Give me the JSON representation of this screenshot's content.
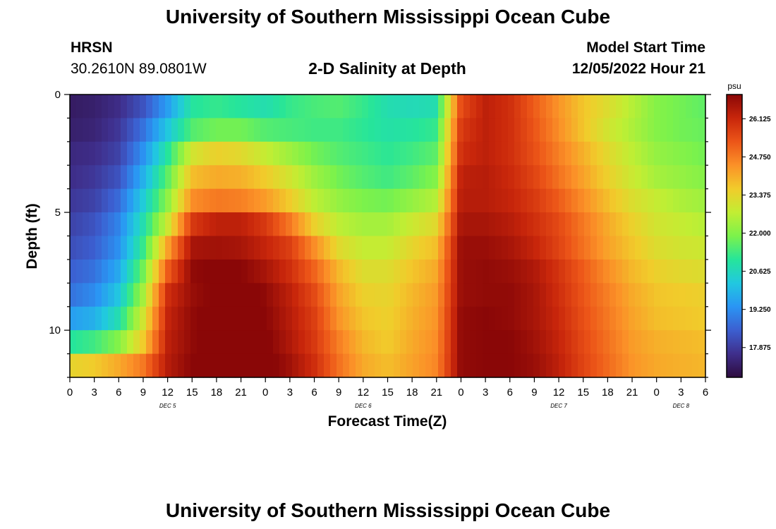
{
  "page": {
    "title": "University of Southern Mississippi Ocean Cube",
    "footer_title": "University of Southern Mississippi Ocean Cube"
  },
  "header": {
    "station": "HRSN",
    "coords": "30.2610N  89.0801W",
    "chart_title": "2-D Salinity at Depth",
    "model_label": "Model Start Time",
    "model_time": "12/05/2022 Hour 21"
  },
  "colorbar": {
    "unit": "psu",
    "ticks": [
      "26.125",
      "24.750",
      "23.375",
      "22.000",
      "20.625",
      "19.250",
      "17.875"
    ],
    "colormap": [
      "#2d0b3e",
      "#3f2f8c",
      "#3c5fd0",
      "#2a95f4",
      "#21c8e0",
      "#26e59a",
      "#7cf24b",
      "#c2ee33",
      "#f1cc2b",
      "#fb9128",
      "#ec5518",
      "#c8260b",
      "#8a0707"
    ]
  },
  "chart_data": {
    "type": "heatmap",
    "title": "2-D Salinity at Depth",
    "xlabel": "Forecast Time(Z)",
    "ylabel": "Depth (ft)",
    "x_tick_labels": [
      "0",
      "3",
      "6",
      "9",
      "12",
      "15",
      "18",
      "21",
      "0",
      "3",
      "6",
      "9",
      "12",
      "15",
      "18",
      "21",
      "0",
      "3",
      "6",
      "9",
      "12",
      "15",
      "18",
      "21",
      "0",
      "3",
      "6"
    ],
    "x_range_hours": [
      0,
      78
    ],
    "day_labels": [
      {
        "label": "DEC 5",
        "hour": 12
      },
      {
        "label": "DEC 6",
        "hour": 36
      },
      {
        "label": "DEC 7",
        "hour": 60
      },
      {
        "label": "DEC 8",
        "hour": 75
      }
    ],
    "y_tick_labels": [
      "0",
      "5",
      "10"
    ],
    "y_range_ft": [
      0,
      12
    ],
    "y_inverted": true,
    "color_range_psu": [
      16.8,
      27.0
    ],
    "colorbar_label": "psu",
    "depth_levels_ft": [
      0.5,
      1.5,
      2.5,
      3.5,
      4.5,
      5.5,
      6.5,
      7.5,
      8.5,
      9.5,
      10.5,
      11.5
    ],
    "time_hours": [
      0,
      3,
      6,
      9,
      12,
      15,
      18,
      21,
      24,
      27,
      30,
      33,
      36,
      39,
      42,
      45,
      48,
      51,
      54,
      57,
      60,
      63,
      66,
      69,
      72,
      75,
      78
    ],
    "salinity_psu": [
      [
        17.2,
        17.3,
        17.6,
        18.3,
        19.5,
        21.0,
        21.2,
        21.0,
        20.8,
        21.2,
        21.4,
        21.5,
        21.2,
        20.8,
        20.7,
        20.8,
        25.5,
        26.3,
        26.0,
        25.2,
        24.4,
        23.7,
        23.2,
        22.6,
        22.0,
        21.8,
        21.6
      ],
      [
        17.3,
        17.4,
        17.8,
        18.8,
        20.2,
        21.5,
        21.8,
        21.8,
        21.5,
        21.4,
        21.3,
        21.3,
        21.1,
        20.9,
        21.0,
        21.2,
        25.8,
        26.3,
        26.0,
        25.3,
        24.5,
        23.7,
        23.0,
        22.5,
        22.0,
        21.8,
        21.7
      ],
      [
        17.5,
        17.6,
        18.0,
        19.3,
        21.0,
        23.0,
        23.5,
        23.3,
        22.8,
        22.3,
        21.8,
        21.5,
        21.3,
        21.1,
        21.3,
        21.6,
        26.0,
        26.3,
        26.0,
        25.4,
        24.7,
        24.0,
        23.3,
        22.7,
        22.2,
        22.0,
        21.8
      ],
      [
        17.6,
        17.8,
        18.3,
        19.8,
        21.6,
        23.8,
        24.1,
        24.0,
        23.6,
        23.0,
        22.3,
        21.8,
        21.5,
        21.3,
        21.6,
        22.0,
        26.3,
        26.4,
        26.1,
        25.6,
        24.9,
        24.2,
        23.5,
        22.9,
        22.4,
        22.2,
        22.0
      ],
      [
        17.8,
        18.0,
        18.7,
        20.3,
        22.1,
        24.5,
        24.8,
        24.7,
        24.3,
        23.6,
        22.7,
        22.2,
        21.9,
        21.8,
        22.2,
        22.6,
        26.4,
        26.4,
        26.2,
        25.8,
        25.2,
        24.5,
        23.8,
        23.2,
        22.8,
        22.5,
        22.3
      ],
      [
        18.0,
        18.3,
        19.1,
        20.8,
        22.9,
        25.8,
        26.3,
        26.3,
        25.8,
        24.8,
        23.5,
        22.7,
        22.4,
        22.4,
        22.9,
        23.3,
        26.6,
        26.6,
        26.4,
        26.0,
        25.5,
        24.8,
        24.1,
        23.5,
        23.0,
        22.8,
        22.6
      ],
      [
        18.2,
        18.5,
        19.3,
        21.2,
        24.2,
        26.6,
        26.7,
        26.6,
        26.2,
        25.7,
        24.5,
        23.3,
        22.8,
        22.8,
        23.4,
        23.8,
        26.8,
        26.8,
        26.6,
        26.2,
        25.6,
        24.9,
        24.2,
        23.7,
        23.2,
        23.0,
        22.9
      ],
      [
        18.5,
        18.8,
        19.7,
        21.8,
        25.2,
        26.9,
        27.1,
        27.0,
        26.6,
        26.0,
        25.1,
        23.9,
        23.2,
        23.2,
        23.7,
        24.1,
        26.8,
        26.9,
        26.8,
        26.5,
        25.9,
        25.2,
        24.5,
        23.9,
        23.5,
        23.3,
        23.2
      ],
      [
        18.8,
        19.2,
        20.2,
        22.4,
        26.0,
        26.8,
        27.1,
        27.4,
        26.9,
        26.3,
        25.5,
        24.2,
        23.5,
        23.4,
        23.9,
        24.3,
        26.8,
        26.9,
        26.9,
        26.6,
        26.0,
        25.3,
        24.7,
        24.1,
        23.7,
        23.6,
        23.5
      ],
      [
        19.5,
        19.8,
        20.8,
        23.0,
        26.2,
        26.9,
        27.2,
        27.6,
        27.0,
        26.4,
        25.7,
        24.4,
        23.7,
        23.5,
        24.0,
        24.4,
        26.9,
        27.0,
        26.9,
        26.6,
        26.1,
        25.4,
        24.8,
        24.2,
        23.8,
        23.7,
        23.6
      ],
      [
        21.0,
        21.3,
        22.0,
        23.6,
        26.3,
        26.9,
        27.3,
        27.8,
        27.1,
        26.5,
        25.8,
        24.7,
        23.9,
        23.6,
        24.1,
        24.5,
        26.9,
        27.0,
        27.0,
        26.7,
        26.2,
        25.5,
        24.9,
        24.3,
        24.0,
        23.9,
        23.8
      ],
      [
        23.4,
        23.6,
        24.1,
        24.8,
        26.4,
        27.0,
        27.4,
        28.0,
        27.2,
        26.7,
        26.0,
        24.9,
        24.1,
        23.8,
        24.2,
        24.6,
        26.9,
        27.0,
        27.0,
        26.8,
        26.3,
        25.6,
        25.0,
        24.4,
        24.1,
        24.0,
        23.9
      ]
    ]
  }
}
